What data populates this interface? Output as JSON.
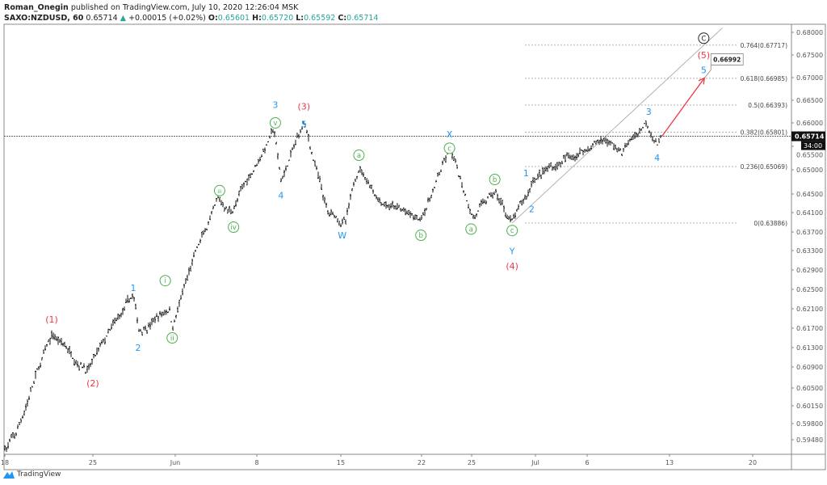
{
  "header": {
    "author": "Roman_Onegin",
    "published": "published on TradingView.com, July 10, 2020 12:26:04 MSK",
    "symbol": "SAXO:NZDUSD, 60",
    "last": "0.65714",
    "change": "+0.00015 (+0.02%)",
    "o_label": "O:",
    "o": "0.65601",
    "h_label": "H:",
    "h": "0.65720",
    "l_label": "L:",
    "l": "0.65592",
    "c_label": "C:",
    "c": "0.65714",
    "up_color": "#26a69a"
  },
  "footer": {
    "brand": "TradingView",
    "logo_icon": "tradingview-logo-icon"
  },
  "chart_data": {
    "type": "ohlc",
    "interval": "60",
    "y_ticks": [
      "0.68000",
      "0.67500",
      "0.67000",
      "0.66500",
      "0.66000",
      "0.65500",
      "0.65000",
      "0.64500",
      "0.64100",
      "0.63700",
      "0.63300",
      "0.62900",
      "0.62500",
      "0.62100",
      "0.61700",
      "0.61300",
      "0.60900",
      "0.60500",
      "0.60150",
      "0.59800",
      "0.59480"
    ],
    "x_ticks": [
      "18",
      "25",
      "Jun",
      "8",
      "15",
      "22",
      "25",
      "Jul",
      "6",
      "13",
      "20"
    ],
    "current_price": "0.65714",
    "countdown": "34:00",
    "price_path": [
      [
        "2020-05-18T00:00",
        0.5935
      ],
      [
        "2020-05-18T14:00",
        0.5957
      ],
      [
        "2020-05-19T12:00",
        0.605
      ],
      [
        "2020-05-20T18:00",
        0.6155
      ],
      [
        "2020-05-22T22:00",
        0.6088
      ],
      [
        "2020-05-27T14:00",
        0.6235
      ],
      [
        "2020-05-27T22:00",
        0.6163
      ],
      [
        "2020-05-29T18:00",
        0.6213
      ],
      [
        "2020-05-29T22:00",
        0.6175
      ],
      [
        "2020-06-02T05:00",
        0.6313
      ],
      [
        "2020-06-03T16:00",
        0.6433
      ],
      [
        "2020-06-04T10:00",
        0.6412
      ],
      [
        "2020-06-09T00:00",
        0.6585
      ],
      [
        "2020-06-09T10:00",
        0.6475
      ],
      [
        "2020-06-10T19:00",
        0.66
      ],
      [
        "2020-06-12T05:00",
        0.6407
      ],
      [
        "2020-06-15T07:00",
        0.639
      ],
      [
        "2020-06-16T02:00",
        0.6509
      ],
      [
        "2020-06-17T07:00",
        0.6442
      ],
      [
        "2020-06-19T17:00",
        0.639
      ],
      [
        "2020-06-23T12:00",
        0.654
      ],
      [
        "2020-06-24T22:00",
        0.6405
      ],
      [
        "2020-06-26T05:00",
        0.645
      ],
      [
        "2020-06-29T06:00",
        0.63886
      ],
      [
        "2020-06-30T05:00",
        0.645
      ],
      [
        "2020-06-30T12:00",
        0.6483
      ],
      [
        "2020-07-06T19:00",
        0.6568
      ],
      [
        "2020-07-07T19:00",
        0.6535
      ],
      [
        "2020-07-09T07:00",
        0.6605
      ],
      [
        "2020-07-10T00:00",
        0.6555
      ],
      [
        "2020-07-10T05:00",
        0.65714
      ]
    ],
    "fib_levels": [
      {
        "label": "0.764(0.67717)",
        "price": 0.67717
      },
      {
        "label": "0.618(0.66985)",
        "price": 0.66985
      },
      {
        "label": "0.5(0.66393)",
        "price": 0.66393
      },
      {
        "label": "0.382(0.65801)",
        "price": 0.65801
      },
      {
        "label": "0.236(0.65069)",
        "price": 0.65069
      },
      {
        "label": "0(0.63886)",
        "price": 0.63886
      }
    ],
    "projection": {
      "from": [
        "2020-07-10T05:00",
        0.65714
      ],
      "to": [
        "2020-07-14T18:00",
        0.66992
      ],
      "label": "0.66992",
      "color": "#f23645"
    },
    "trendline": {
      "from": [
        "2020-06-29T06:00",
        0.63886
      ],
      "to": [
        "2020-07-15T20:00",
        0.681
      ]
    },
    "wave_labels": [
      {
        "text": "(1)",
        "color": "#f23645",
        "circled": false,
        "at": [
          "2020-05-20T17:00",
          0.6188
        ]
      },
      {
        "text": "(2)",
        "color": "#f23645",
        "circled": false,
        "at": [
          "2020-05-25T04:00",
          0.6059
        ]
      },
      {
        "text": "1",
        "color": "#2196f3",
        "circled": false,
        "at": [
          "2020-05-27T14:00",
          0.6253
        ]
      },
      {
        "text": "2",
        "color": "#2196f3",
        "circled": false,
        "at": [
          "2020-05-27T21:00",
          0.613
        ]
      },
      {
        "text": "i",
        "color": "#4caf50",
        "circled": true,
        "at": [
          "2020-05-29T12:00",
          0.6268
        ]
      },
      {
        "text": "ii",
        "color": "#4caf50",
        "circled": true,
        "at": [
          "2020-05-29T22:00",
          0.615
        ]
      },
      {
        "text": "iii",
        "color": "#4caf50",
        "circled": true,
        "at": [
          "2020-06-03T18:00",
          0.6457
        ]
      },
      {
        "text": "iv",
        "color": "#4caf50",
        "circled": true,
        "at": [
          "2020-06-04T14:00",
          0.638
        ]
      },
      {
        "text": "v",
        "color": "#4caf50",
        "circled": true,
        "at": [
          "2020-06-09T02:00",
          0.66
        ]
      },
      {
        "text": "3",
        "color": "#2196f3",
        "circled": false,
        "at": [
          "2020-06-09T02:00",
          0.664
        ]
      },
      {
        "text": "4",
        "color": "#2196f3",
        "circled": false,
        "at": [
          "2020-06-09T10:00",
          0.6447
        ]
      },
      {
        "text": "(3)",
        "color": "#f23645",
        "circled": false,
        "at": [
          "2020-06-10T19:00",
          0.6637
        ]
      },
      {
        "text": "5",
        "color": "#2196f3",
        "circled": false,
        "at": [
          "2020-06-10T19:00",
          0.6597
        ]
      },
      {
        "text": "W",
        "color": "#2196f3",
        "circled": false,
        "at": [
          "2020-06-15T02:00",
          0.6363
        ]
      },
      {
        "text": "a",
        "color": "#4caf50",
        "circled": true,
        "at": [
          "2020-06-16T02:00",
          0.6531
        ]
      },
      {
        "text": "b",
        "color": "#4caf50",
        "circled": true,
        "at": [
          "2020-06-19T19:00",
          0.6363
        ]
      },
      {
        "text": "X",
        "color": "#2196f3",
        "circled": false,
        "at": [
          "2020-06-23T12:00",
          0.6576
        ]
      },
      {
        "text": "c",
        "color": "#4caf50",
        "circled": true,
        "at": [
          "2020-06-23T12:00",
          0.6546
        ]
      },
      {
        "text": "a",
        "color": "#4caf50",
        "circled": true,
        "at": [
          "2020-06-24T19:00",
          0.6376
        ]
      },
      {
        "text": "b",
        "color": "#4caf50",
        "circled": true,
        "at": [
          "2020-06-26T05:00",
          0.648
        ]
      },
      {
        "text": "c",
        "color": "#4caf50",
        "circled": true,
        "at": [
          "2020-06-29T06:00",
          0.6373
        ]
      },
      {
        "text": "Y",
        "color": "#2196f3",
        "circled": false,
        "at": [
          "2020-06-29T06:00",
          0.6329
        ]
      },
      {
        "text": "(4)",
        "color": "#f23645",
        "circled": false,
        "at": [
          "2020-06-29T06:00",
          0.6298
        ]
      },
      {
        "text": "1",
        "color": "#2196f3",
        "circled": false,
        "at": [
          "2020-06-30T02:00",
          0.6493
        ]
      },
      {
        "text": "2",
        "color": "#2196f3",
        "circled": false,
        "at": [
          "2020-06-30T10:00",
          0.6418
        ]
      },
      {
        "text": "3",
        "color": "#2196f3",
        "circled": false,
        "at": [
          "2020-07-09T10:00",
          0.6625
        ]
      },
      {
        "text": "4",
        "color": "#2196f3",
        "circled": false,
        "at": [
          "2020-07-09T22:00",
          0.6526
        ]
      },
      {
        "text": "5",
        "color": "#2196f3",
        "circled": false,
        "at": [
          "2020-07-14T17:00",
          0.6717
        ]
      },
      {
        "text": "(5)",
        "color": "#f23645",
        "circled": false,
        "at": [
          "2020-07-14T17:00",
          0.675
        ]
      },
      {
        "text": "C",
        "color": "#222222",
        "circled": true,
        "at": [
          "2020-07-14T17:00",
          0.6787
        ]
      }
    ]
  }
}
